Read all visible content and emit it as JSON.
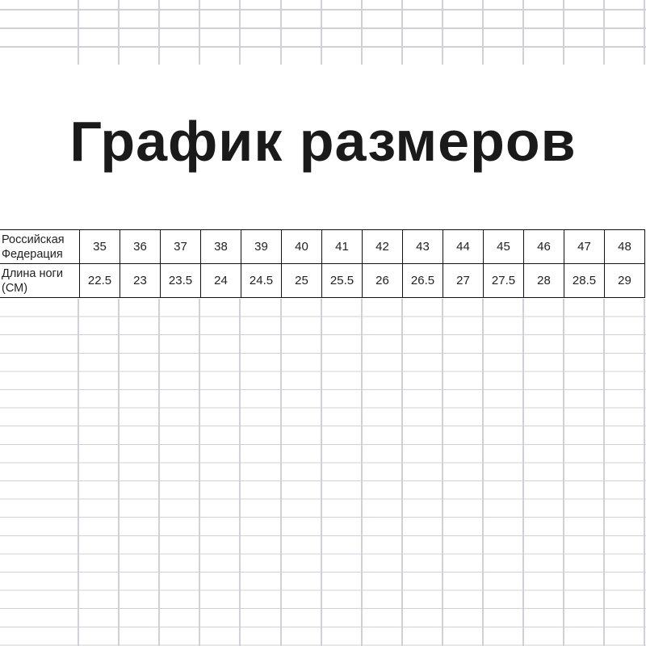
{
  "title": "График размеров",
  "table": {
    "rows": [
      {
        "label": "Российская Федерация",
        "values": [
          "35",
          "36",
          "37",
          "38",
          "39",
          "40",
          "41",
          "42",
          "43",
          "44",
          "45",
          "46",
          "47",
          "48"
        ]
      },
      {
        "label": "Длина ноги (СМ)",
        "values": [
          "22.5",
          "23",
          "23.5",
          "24",
          "24.5",
          "25",
          "25.5",
          "26",
          "26.5",
          "27",
          "27.5",
          "28",
          "28.5",
          "29"
        ]
      }
    ]
  },
  "colors": {
    "gridline": "#cfd0d8",
    "border": "#111111",
    "text": "#1a1a1a"
  }
}
